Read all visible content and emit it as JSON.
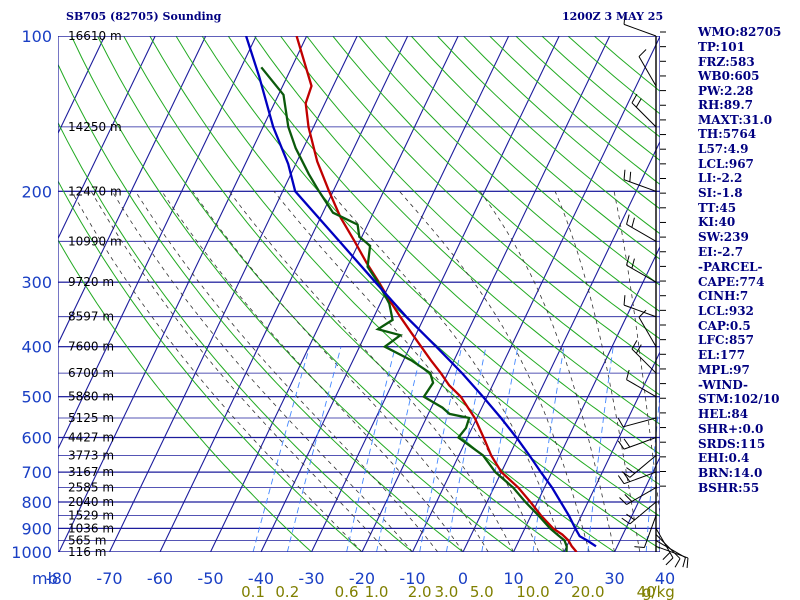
{
  "header": {
    "station": "SB705 (82705) Sounding",
    "time": "1200Z  3 MAY 25"
  },
  "indices": [
    "WMO:82705",
    "TP:101",
    "FRZ:583",
    "WB0:605",
    "PW:2.28",
    "RH:89.7",
    "MAXT:31.0",
    "TH:5764",
    "L57:4.9",
    "LCL:967",
    "LI:-2.2",
    "SI:-1.8",
    "TT:45",
    "KI:40",
    "SW:239",
    "EI:-2.7",
    "-PARCEL-",
    "CAPE:774",
    "CINH:7",
    "LCL:932",
    "CAP:0.5",
    "LFC:857",
    "EL:177",
    "MPL:97",
    "-WIND-",
    "STM:102/10",
    "HEL:84",
    "SHR+:0.0",
    "SRDS:115",
    "EHI:0.4",
    "BRN:14.0",
    "BSHR:55"
  ],
  "colors": {
    "grid": "#1c1c9c",
    "dry_adiabat": "#22aa22",
    "moist_adiabat": "#333333",
    "mixing_ratio": "#4488ff",
    "temperature": "#c00000",
    "dewpoint": "#0b5a0b",
    "parcel": "#0000c0",
    "wind": "#000000"
  },
  "chart_data": {
    "type": "line",
    "title": "SB705 (82705) Sounding",
    "pressure_unit": "mb",
    "mixing_ratio_unit": "g/kg",
    "pressure_levels": [
      100,
      200,
      300,
      400,
      500,
      600,
      700,
      800,
      900,
      1000
    ],
    "pressure_tick_labels": [
      "100",
      "200",
      "300",
      "400",
      "500",
      "600",
      "700",
      "800",
      "900",
      "1000"
    ],
    "pressure_axis_label": "mb",
    "temperature_ticks": [
      -80,
      -70,
      -60,
      -50,
      -40,
      -30,
      -20,
      -10,
      0,
      10,
      20,
      30,
      40
    ],
    "temperature_tick_labels": [
      "-80",
      "-70",
      "-60",
      "-50",
      "-40",
      "-30",
      "-20",
      "-10",
      "0",
      "10",
      "20",
      "30",
      "40"
    ],
    "ylim": [
      1000,
      100
    ],
    "xlim": [
      -80,
      40
    ],
    "height_labels": [
      {
        "p": 100,
        "text": "16610 m"
      },
      {
        "p": 150,
        "text": "14250 m"
      },
      {
        "p": 200,
        "text": "12470 m"
      },
      {
        "p": 250,
        "text": "10990 m"
      },
      {
        "p": 300,
        "text": "9720 m"
      },
      {
        "p": 350,
        "text": "8597 m"
      },
      {
        "p": 400,
        "text": "7600 m"
      },
      {
        "p": 450,
        "text": "6700 m"
      },
      {
        "p": 500,
        "text": "5880 m"
      },
      {
        "p": 550,
        "text": "5125 m"
      },
      {
        "p": 600,
        "text": "4427 m"
      },
      {
        "p": 650,
        "text": "3773 m"
      },
      {
        "p": 700,
        "text": "3167 m"
      },
      {
        "p": 750,
        "text": "2585 m"
      },
      {
        "p": 800,
        "text": "2040 m"
      },
      {
        "p": 850,
        "text": "1529 m"
      },
      {
        "p": 900,
        "text": "1036 m"
      },
      {
        "p": 950,
        "text": "565 m"
      },
      {
        "p": 1000,
        "text": "116 m"
      }
    ],
    "mixing_ratio_labels": [
      {
        "w": 0.1,
        "text": "0.1"
      },
      {
        "w": 0.2,
        "text": "0.2"
      },
      {
        "w": 0.6,
        "text": "0.6"
      },
      {
        "w": 1.0,
        "text": "1.0"
      },
      {
        "w": 2.0,
        "text": "2.0"
      },
      {
        "w": 3.0,
        "text": "3.0"
      },
      {
        "w": 5.0,
        "text": "5.0"
      },
      {
        "w": 10.0,
        "text": "10.0"
      },
      {
        "w": 20.0,
        "text": "20.0"
      },
      {
        "w": 40.0,
        "text": "40"
      }
    ],
    "series": [
      {
        "name": "Temperature",
        "points": [
          [
            1000,
            22.5
          ],
          [
            975,
            21.0
          ],
          [
            950,
            19.8
          ],
          [
            925,
            18.0
          ],
          [
            900,
            15.6
          ],
          [
            850,
            12.0
          ],
          [
            800,
            8.6
          ],
          [
            750,
            4.8
          ],
          [
            700,
            0.0
          ],
          [
            650,
            -3.6
          ],
          [
            600,
            -6.8
          ],
          [
            550,
            -10.4
          ],
          [
            500,
            -15.2
          ],
          [
            475,
            -18.6
          ],
          [
            450,
            -21.4
          ],
          [
            425,
            -24.6
          ],
          [
            400,
            -27.8
          ],
          [
            375,
            -31.2
          ],
          [
            350,
            -34.8
          ],
          [
            325,
            -38.5
          ],
          [
            300,
            -42.3
          ],
          [
            275,
            -46.6
          ],
          [
            250,
            -51.0
          ],
          [
            225,
            -56.0
          ],
          [
            200,
            -60.8
          ],
          [
            175,
            -66.0
          ],
          [
            150,
            -71.0
          ],
          [
            135,
            -73.8
          ],
          [
            125,
            -74.3
          ],
          [
            100,
            -82.0
          ]
        ]
      },
      {
        "name": "Dewpoint",
        "points": [
          [
            1000,
            20.5
          ],
          [
            975,
            20.0
          ],
          [
            950,
            19.0
          ],
          [
            925,
            17.0
          ],
          [
            900,
            15.0
          ],
          [
            850,
            11.5
          ],
          [
            800,
            7.6
          ],
          [
            750,
            3.8
          ],
          [
            700,
            -1.2
          ],
          [
            650,
            -5.2
          ],
          [
            600,
            -11.8
          ],
          [
            575,
            -11.2
          ],
          [
            550,
            -11.5
          ],
          [
            540,
            -15.8
          ],
          [
            525,
            -17.8
          ],
          [
            500,
            -22.5
          ],
          [
            470,
            -22.0
          ],
          [
            450,
            -23.5
          ],
          [
            425,
            -28.5
          ],
          [
            400,
            -35.0
          ],
          [
            380,
            -33.0
          ],
          [
            370,
            -38.0
          ],
          [
            355,
            -36.0
          ],
          [
            330,
            -38.2
          ],
          [
            300,
            -42.5
          ],
          [
            280,
            -46.0
          ],
          [
            255,
            -47.5
          ],
          [
            245,
            -50.5
          ],
          [
            232,
            -52.0
          ],
          [
            220,
            -58.0
          ],
          [
            200,
            -62.8
          ],
          [
            185,
            -66.5
          ],
          [
            165,
            -71.5
          ],
          [
            150,
            -75.0
          ],
          [
            130,
            -79.0
          ],
          [
            115,
            -86.0
          ]
        ]
      },
      {
        "name": "Parcel",
        "points": [
          [
            975,
            25.8
          ],
          [
            950,
            23.5
          ],
          [
            932,
            21.6
          ],
          [
            900,
            20.0
          ],
          [
            850,
            17.5
          ],
          [
            800,
            14.6
          ],
          [
            750,
            11.5
          ],
          [
            700,
            7.8
          ],
          [
            650,
            4.0
          ],
          [
            600,
            -0.3
          ],
          [
            550,
            -5.2
          ],
          [
            500,
            -10.8
          ],
          [
            450,
            -17.2
          ],
          [
            400,
            -24.8
          ],
          [
            350,
            -33.6
          ],
          [
            300,
            -43.0
          ],
          [
            250,
            -54.0
          ],
          [
            200,
            -67.5
          ],
          [
            177,
            -71.5
          ],
          [
            150,
            -78.0
          ],
          [
            120,
            -85.5
          ],
          [
            100,
            -92.0
          ]
        ]
      }
    ],
    "wind_barbs": [
      {
        "p": 975,
        "dir": 110,
        "spd": 5
      },
      {
        "p": 950,
        "dir": 120,
        "spd": 10
      },
      {
        "p": 925,
        "dir": 135,
        "spd": 10
      },
      {
        "p": 900,
        "dir": 150,
        "spd": 15
      },
      {
        "p": 850,
        "dir": 200,
        "spd": 10
      },
      {
        "p": 800,
        "dir": 230,
        "spd": 15
      },
      {
        "p": 750,
        "dir": 240,
        "spd": 15
      },
      {
        "p": 700,
        "dir": 250,
        "spd": 15
      },
      {
        "p": 650,
        "dir": 230,
        "spd": 20
      },
      {
        "p": 600,
        "dir": 250,
        "spd": 15
      },
      {
        "p": 550,
        "dir": 255,
        "spd": 10
      },
      {
        "p": 500,
        "dir": 300,
        "spd": 10
      },
      {
        "p": 450,
        "dir": 315,
        "spd": 15
      },
      {
        "p": 400,
        "dir": 330,
        "spd": 10
      },
      {
        "p": 350,
        "dir": 290,
        "spd": 10
      },
      {
        "p": 300,
        "dir": 300,
        "spd": 15
      },
      {
        "p": 250,
        "dir": 300,
        "spd": 15
      },
      {
        "p": 200,
        "dir": 290,
        "spd": 15
      },
      {
        "p": 150,
        "dir": 315,
        "spd": 20
      },
      {
        "p": 125,
        "dir": 330,
        "spd": 10
      },
      {
        "p": 100,
        "dir": 290,
        "spd": 10
      }
    ]
  }
}
